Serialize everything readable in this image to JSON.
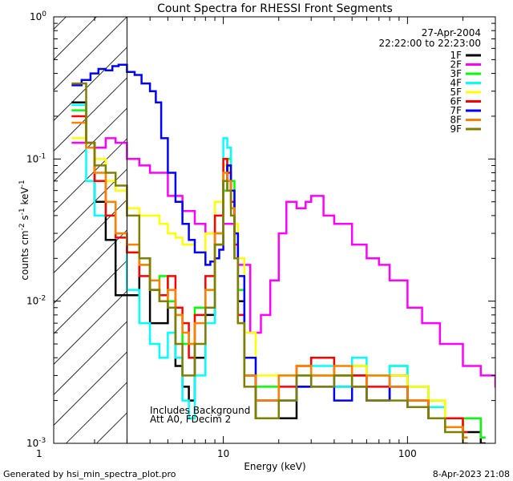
{
  "chart_data": {
    "type": "line",
    "title": "Count Spectra for RHESSI Front Segments",
    "xlabel": "Energy (keV)",
    "ylabel": "counts cm-2 s-1 keV-1",
    "x_scale": "log",
    "y_scale": "log",
    "xlim": [
      1.2,
      300
    ],
    "ylim": [
      0.001,
      1
    ],
    "x_ticks": [
      {
        "value": 1,
        "label": "1"
      },
      {
        "value": 10,
        "label": "10"
      },
      {
        "value": 100,
        "label": "100"
      }
    ],
    "y_ticks": [
      {
        "value": 1,
        "label": "10",
        "exp": "0"
      },
      {
        "value": 0.1,
        "label": "10",
        "exp": "-1"
      },
      {
        "value": 0.01,
        "label": "10",
        "exp": "-2"
      },
      {
        "value": 0.001,
        "label": "10",
        "exp": "-3"
      }
    ],
    "date": "27-Apr-2004",
    "time_range": "22:22:00 to 22:23:00",
    "annotation_lines": [
      "Includes Background",
      "Att A0, FDecim 2"
    ],
    "shaded_region_keV": [
      1.2,
      3
    ],
    "legend_position": "top-right",
    "series": [
      {
        "name": "1F",
        "color": "#000000",
        "x": [
          1.5,
          1.8,
          2.0,
          2.3,
          2.6,
          3.0,
          3.5,
          4.0,
          4.5,
          5.0,
          5.5,
          6.0,
          6.5,
          7.0,
          8.0,
          9.0,
          10.0,
          10.5,
          11.0,
          11.5,
          12.0,
          13.0,
          15.0,
          20.0,
          25.0,
          30.0,
          40.0,
          50.0,
          60.0,
          80.0,
          100.0,
          130.0,
          160.0,
          200.0,
          250.0
        ],
        "y": [
          0.25,
          0.13,
          0.05,
          0.027,
          0.011,
          0.011,
          0.02,
          0.007,
          0.007,
          0.01,
          0.0035,
          0.0025,
          0.002,
          0.004,
          0.008,
          0.025,
          0.07,
          0.09,
          0.06,
          0.03,
          0.01,
          0.003,
          0.0015,
          0.0015,
          0.0025,
          0.003,
          0.0025,
          0.003,
          0.002,
          0.003,
          0.002,
          0.0015,
          0.0015,
          0.0012,
          0.001
        ]
      },
      {
        "name": "2F",
        "color": "#ff00ff",
        "x": [
          1.5,
          1.8,
          2.0,
          2.3,
          2.6,
          3.0,
          3.5,
          4.0,
          5.0,
          6.0,
          7.0,
          8.0,
          9.0,
          10.0,
          11.0,
          12.0,
          14.0,
          16.0,
          18.0,
          20.0,
          22.0,
          25.0,
          28.0,
          30.0,
          35.0,
          40.0,
          50.0,
          60.0,
          70.0,
          80.0,
          100.0,
          120.0,
          150.0,
          200.0,
          250.0,
          300.0
        ],
        "y": [
          0.13,
          0.12,
          0.12,
          0.14,
          0.13,
          0.1,
          0.09,
          0.08,
          0.055,
          0.043,
          0.035,
          0.03,
          0.03,
          0.035,
          0.035,
          0.018,
          0.006,
          0.008,
          0.014,
          0.03,
          0.05,
          0.045,
          0.05,
          0.055,
          0.04,
          0.035,
          0.025,
          0.02,
          0.018,
          0.014,
          0.009,
          0.007,
          0.005,
          0.0035,
          0.003,
          0.0025
        ]
      },
      {
        "name": "3F",
        "color": "#00ff00",
        "x": [
          1.5,
          1.8,
          2.0,
          2.3,
          2.6,
          3.0,
          3.5,
          4.0,
          4.5,
          5.0,
          5.5,
          6.0,
          7.0,
          8.0,
          9.0,
          10.0,
          10.5,
          11.0,
          11.5,
          12.0,
          13.0,
          15.0,
          20.0,
          25.0,
          30.0,
          40.0,
          50.0,
          60.0,
          80.0,
          100.0,
          130.0,
          160.0,
          200.0,
          250.0
        ],
        "y": [
          0.22,
          0.12,
          0.07,
          0.04,
          0.03,
          0.022,
          0.018,
          0.012,
          0.015,
          0.01,
          0.008,
          0.005,
          0.009,
          0.012,
          0.03,
          0.06,
          0.1,
          0.07,
          0.035,
          0.012,
          0.004,
          0.0025,
          0.003,
          0.003,
          0.004,
          0.003,
          0.0035,
          0.003,
          0.0035,
          0.0025,
          0.002,
          0.0015,
          0.0015,
          0.0011
        ]
      },
      {
        "name": "4F",
        "color": "#00ffff",
        "x": [
          1.5,
          1.8,
          2.0,
          2.3,
          2.6,
          3.0,
          3.5,
          4.0,
          4.5,
          5.0,
          5.5,
          6.0,
          6.5,
          7.0,
          8.0,
          9.0,
          10.0,
          10.5,
          11.0,
          11.5,
          12.0,
          13.0,
          15.0,
          20.0,
          25.0,
          30.0,
          40.0,
          50.0,
          60.0,
          80.0,
          100.0,
          130.0,
          160.0,
          200.0
        ],
        "y": [
          0.24,
          0.07,
          0.04,
          0.05,
          0.03,
          0.012,
          0.007,
          0.005,
          0.004,
          0.006,
          0.004,
          0.002,
          0.0015,
          0.003,
          0.007,
          0.03,
          0.14,
          0.12,
          0.06,
          0.02,
          0.008,
          0.003,
          0.002,
          0.002,
          0.003,
          0.0035,
          0.0025,
          0.004,
          0.003,
          0.0035,
          0.0025,
          0.0018,
          0.0015,
          0.0012
        ]
      },
      {
        "name": "5F",
        "color": "#ffff00",
        "x": [
          1.5,
          1.8,
          2.0,
          2.3,
          2.6,
          3.0,
          3.5,
          4.0,
          4.5,
          5.0,
          5.5,
          6.0,
          7.0,
          8.0,
          9.0,
          10.0,
          10.5,
          11.0,
          11.5,
          12.0,
          13.0,
          15.0,
          20.0,
          25.0,
          30.0,
          40.0,
          50.0,
          60.0,
          80.0,
          100.0,
          130.0,
          160.0,
          200.0
        ],
        "y": [
          0.14,
          0.12,
          0.1,
          0.07,
          0.06,
          0.045,
          0.04,
          0.04,
          0.035,
          0.03,
          0.028,
          0.025,
          0.022,
          0.03,
          0.05,
          0.09,
          0.09,
          0.06,
          0.035,
          0.02,
          0.006,
          0.003,
          0.003,
          0.0035,
          0.003,
          0.003,
          0.0035,
          0.003,
          0.003,
          0.0025,
          0.002,
          0.0015,
          0.0012
        ]
      },
      {
        "name": "6F",
        "color": "#ff0000",
        "x": [
          1.5,
          1.8,
          2.0,
          2.3,
          2.6,
          3.0,
          3.5,
          4.0,
          4.5,
          5.0,
          5.5,
          6.0,
          6.5,
          7.0,
          8.0,
          9.0,
          10.0,
          10.5,
          11.0,
          11.5,
          12.0,
          13.0,
          15.0,
          20.0,
          25.0,
          30.0,
          40.0,
          50.0,
          60.0,
          80.0,
          100.0,
          130.0,
          160.0,
          200.0
        ],
        "y": [
          0.2,
          0.13,
          0.07,
          0.04,
          0.028,
          0.022,
          0.015,
          0.012,
          0.011,
          0.015,
          0.009,
          0.007,
          0.004,
          0.008,
          0.015,
          0.04,
          0.1,
          0.08,
          0.05,
          0.025,
          0.008,
          0.003,
          0.002,
          0.0025,
          0.0035,
          0.004,
          0.003,
          0.003,
          0.0025,
          0.0025,
          0.002,
          0.0015,
          0.0015,
          0.0012
        ]
      },
      {
        "name": "7F",
        "color": "#0000ff",
        "x": [
          1.5,
          1.7,
          1.9,
          2.1,
          2.3,
          2.5,
          2.7,
          3.0,
          3.3,
          3.6,
          4.0,
          4.3,
          4.6,
          5.0,
          5.5,
          6.0,
          6.5,
          7.0,
          8.0,
          8.5,
          9.0,
          9.5,
          10.0,
          10.5,
          11.0,
          11.5,
          12.0,
          13.0,
          15.0,
          20.0,
          25.0,
          30.0,
          40.0,
          50.0,
          60.0,
          80.0,
          100.0,
          130.0,
          160.0,
          200.0
        ],
        "y": [
          0.33,
          0.36,
          0.4,
          0.43,
          0.42,
          0.45,
          0.46,
          0.41,
          0.39,
          0.34,
          0.3,
          0.25,
          0.14,
          0.08,
          0.05,
          0.035,
          0.027,
          0.022,
          0.018,
          0.019,
          0.02,
          0.023,
          0.07,
          0.09,
          0.06,
          0.03,
          0.015,
          0.004,
          0.002,
          0.002,
          0.0025,
          0.0025,
          0.002,
          0.0025,
          0.002,
          0.0025,
          0.0018,
          0.0015,
          0.0013,
          0.0011
        ]
      },
      {
        "name": "8F",
        "color": "#ff8000",
        "x": [
          1.5,
          1.8,
          2.0,
          2.3,
          2.6,
          3.0,
          3.5,
          4.0,
          4.5,
          5.0,
          5.5,
          6.0,
          6.5,
          7.0,
          8.0,
          9.0,
          10.0,
          10.5,
          11.0,
          11.5,
          12.0,
          13.0,
          15.0,
          20.0,
          25.0,
          30.0,
          40.0,
          50.0,
          60.0,
          80.0,
          100.0,
          130.0,
          160.0,
          200.0
        ],
        "y": [
          0.18,
          0.12,
          0.08,
          0.05,
          0.03,
          0.025,
          0.018,
          0.014,
          0.01,
          0.012,
          0.008,
          0.006,
          0.005,
          0.007,
          0.012,
          0.03,
          0.08,
          0.07,
          0.045,
          0.02,
          0.007,
          0.003,
          0.002,
          0.003,
          0.0035,
          0.003,
          0.0035,
          0.0025,
          0.003,
          0.0025,
          0.002,
          0.0015,
          0.0013,
          0.0011
        ]
      },
      {
        "name": "9F",
        "color": "#808000",
        "x": [
          1.5,
          1.8,
          2.0,
          2.3,
          2.6,
          3.0,
          3.5,
          4.0,
          4.5,
          5.0,
          5.5,
          6.0,
          6.5,
          7.0,
          8.0,
          9.0,
          10.0,
          10.5,
          11.0,
          11.5,
          12.0,
          13.0,
          15.0,
          20.0,
          25.0,
          30.0,
          40.0,
          50.0,
          60.0,
          80.0,
          100.0,
          130.0,
          160.0,
          200.0
        ],
        "y": [
          0.34,
          0.13,
          0.09,
          0.08,
          0.065,
          0.04,
          0.02,
          0.012,
          0.01,
          0.009,
          0.005,
          0.003,
          0.003,
          0.005,
          0.009,
          0.025,
          0.07,
          0.06,
          0.04,
          0.02,
          0.007,
          0.0025,
          0.0015,
          0.002,
          0.003,
          0.0025,
          0.003,
          0.0025,
          0.002,
          0.002,
          0.0018,
          0.0015,
          0.0012,
          0.001
        ]
      }
    ]
  },
  "footer": {
    "generated_by": "Generated by hsi_min_spectra_plot.pro",
    "timestamp": "8-Apr-2023 21:08"
  }
}
